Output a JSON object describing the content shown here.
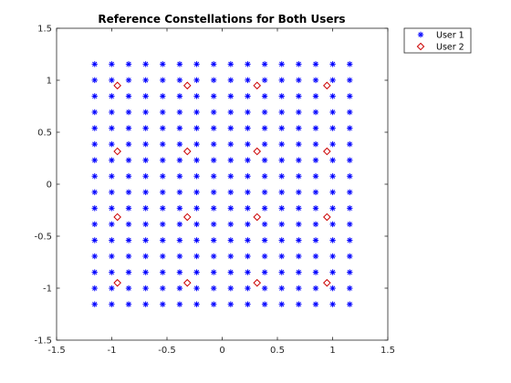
{
  "chart_data": {
    "type": "scatter",
    "title": "Reference Constellations for Both Users",
    "xlabel": "",
    "ylabel": "",
    "xlim": [
      -1.5,
      1.5
    ],
    "ylim": [
      -1.5,
      1.5
    ],
    "xticks": [
      "-1.5",
      "-1",
      "-0.5",
      "0",
      "0.5",
      "1",
      "1.5"
    ],
    "yticks": [
      "-1.5",
      "-1",
      "-0.5",
      "0",
      "0.5",
      "1",
      "1.5"
    ],
    "grid": false,
    "legend_position": "outside top-right",
    "series": [
      {
        "name": "User 1",
        "marker": "asterisk",
        "color": "#0000ff",
        "grid_levels": [
          -1.155,
          -1.001,
          -0.847,
          -0.693,
          -0.539,
          -0.385,
          -0.231,
          -0.077,
          0.077,
          0.231,
          0.385,
          0.539,
          0.693,
          0.847,
          1.001,
          1.155
        ],
        "points": "all 256 combinations (x, y) of grid_levels"
      },
      {
        "name": "User 2",
        "marker": "diamond",
        "color": "#cc0000",
        "grid_levels": [
          -0.949,
          -0.316,
          0.316,
          0.949
        ],
        "points": "all 16 combinations (x, y) of grid_levels"
      }
    ]
  }
}
